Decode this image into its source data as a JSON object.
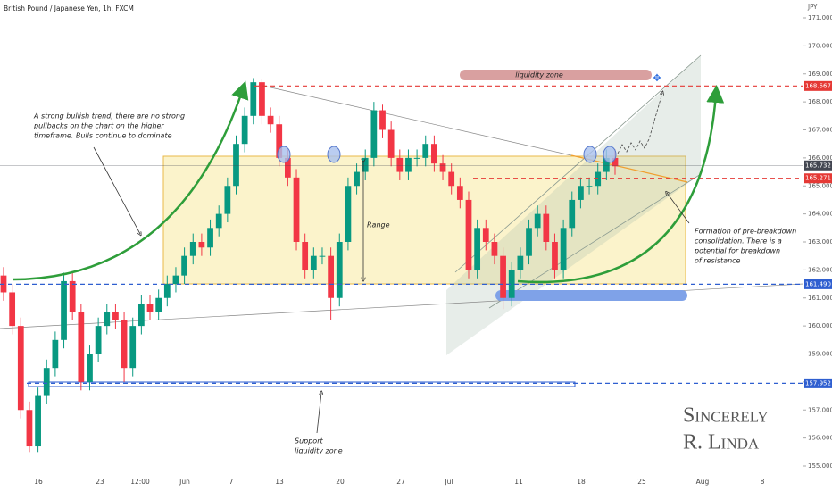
{
  "header": {
    "title": "British Pound / Japanese Yen, 1h, FXCM",
    "currency": "JPY"
  },
  "chart_data": {
    "type": "candlestick",
    "ylim": [
      155,
      171
    ],
    "yticks": [
      {
        "value": 171,
        "label": "171.000"
      },
      {
        "value": 170,
        "label": "170.000"
      },
      {
        "value": 169,
        "label": "169.000"
      },
      {
        "value": 168,
        "label": "168.000"
      },
      {
        "value": 167,
        "label": "167.000"
      },
      {
        "value": 166,
        "label": "166.000"
      },
      {
        "value": 165,
        "label": "165.000"
      },
      {
        "value": 164,
        "label": "164.000"
      },
      {
        "value": 163,
        "label": "163.000"
      },
      {
        "value": 162,
        "label": "162.000"
      },
      {
        "value": 161,
        "label": "161.000"
      },
      {
        "value": 160,
        "label": "160.000"
      },
      {
        "value": 159,
        "label": "159.000"
      },
      {
        "value": 158,
        "label": "158.000"
      },
      {
        "value": 157,
        "label": "157.000"
      },
      {
        "value": 156,
        "label": "156.000"
      },
      {
        "value": 155,
        "label": "155.000"
      }
    ],
    "x_labels": [
      "16",
      "23",
      "12:00",
      "Jun",
      "7",
      "13",
      "20",
      "27",
      "Jul",
      "11",
      "18",
      "25",
      "Aug",
      "8"
    ],
    "up_color": "#089981",
    "down_color": "#f23645",
    "open": [
      161.8,
      161.2,
      160.0,
      157.0,
      155.7,
      157.5,
      158.5,
      159.5,
      161.6,
      160.5,
      158.0,
      159.0,
      160.0,
      160.5,
      160.2,
      158.5,
      160.0,
      160.8,
      160.5,
      161.0,
      161.5,
      161.8,
      162.5,
      163.0,
      162.8,
      163.5,
      164.0,
      165.0,
      166.5,
      167.5,
      168.7,
      167.5,
      167.2,
      166.0,
      165.3,
      163.0,
      162.0,
      162.5,
      162.5,
      161.0,
      163.0,
      165.0,
      165.5,
      166.0,
      167.7,
      167.0,
      166.0,
      165.5,
      166.0,
      166.0,
      166.5,
      165.8,
      165.5,
      165.0,
      164.5,
      162.0,
      163.5,
      163.0,
      162.5,
      161.0,
      162.0,
      162.5,
      163.5,
      164.0,
      163.0,
      162.0,
      163.5,
      164.5,
      165.0,
      165.0,
      165.5,
      166.0
    ],
    "high": [
      162.1,
      161.5,
      160.3,
      157.3,
      157.8,
      158.8,
      159.8,
      161.9,
      161.9,
      160.8,
      159.3,
      160.3,
      160.8,
      160.8,
      160.5,
      160.3,
      161.1,
      161.1,
      161.3,
      161.8,
      162.1,
      162.8,
      163.3,
      163.3,
      163.8,
      164.3,
      165.3,
      166.8,
      167.8,
      168.85,
      168.8,
      167.8,
      167.5,
      166.3,
      165.6,
      163.3,
      162.8,
      162.8,
      162.8,
      163.3,
      165.3,
      165.8,
      166.3,
      168.0,
      167.9,
      167.3,
      166.3,
      166.3,
      166.3,
      166.8,
      166.8,
      166.1,
      165.8,
      165.3,
      164.8,
      163.8,
      163.8,
      163.3,
      162.8,
      162.3,
      162.8,
      163.8,
      164.3,
      164.3,
      163.3,
      163.8,
      164.8,
      165.3,
      165.3,
      165.8,
      166.3,
      166.3
    ],
    "low": [
      160.9,
      159.7,
      156.7,
      155.5,
      155.5,
      157.2,
      158.2,
      159.2,
      160.2,
      157.7,
      157.7,
      158.7,
      159.7,
      159.9,
      158.0,
      158.2,
      159.7,
      160.2,
      160.2,
      160.7,
      161.2,
      161.5,
      162.2,
      162.5,
      162.5,
      163.2,
      163.7,
      164.7,
      166.2,
      167.2,
      167.2,
      166.9,
      165.7,
      165.0,
      162.7,
      161.7,
      161.7,
      162.2,
      160.2,
      160.7,
      162.7,
      164.7,
      165.2,
      165.7,
      166.7,
      165.7,
      165.2,
      165.2,
      165.7,
      165.7,
      165.5,
      165.2,
      164.7,
      164.2,
      161.7,
      161.7,
      162.7,
      162.2,
      160.6,
      160.7,
      161.7,
      162.2,
      163.2,
      162.7,
      161.7,
      161.7,
      163.2,
      164.2,
      164.7,
      164.7,
      165.2,
      165.4
    ],
    "close": [
      161.2,
      160.0,
      157.0,
      155.7,
      157.5,
      158.5,
      159.5,
      161.6,
      160.5,
      158.0,
      159.0,
      160.0,
      160.5,
      160.2,
      158.5,
      160.0,
      160.8,
      160.5,
      161.0,
      161.5,
      161.8,
      162.5,
      163.0,
      162.8,
      163.5,
      164.0,
      165.0,
      166.5,
      167.5,
      168.7,
      167.5,
      167.2,
      166.0,
      165.3,
      163.0,
      162.0,
      162.5,
      162.5,
      161.0,
      163.0,
      165.0,
      165.5,
      166.0,
      167.7,
      167.0,
      166.0,
      165.5,
      166.0,
      166.0,
      166.5,
      165.8,
      165.5,
      165.0,
      164.5,
      162.0,
      163.5,
      163.0,
      162.5,
      161.0,
      162.0,
      162.5,
      163.5,
      164.0,
      163.0,
      162.0,
      163.5,
      164.5,
      165.0,
      165.0,
      165.5,
      166.0,
      165.7
    ],
    "levels": [
      {
        "value": 168.567,
        "label": "168.567",
        "color": "#e53935"
      },
      {
        "value": 165.732,
        "label": "165.732",
        "color": "#434651"
      },
      {
        "value": 165.271,
        "label": "165.271",
        "color": "#e53935"
      },
      {
        "value": 161.49,
        "label": "161.490",
        "color": "#2f5fd0"
      },
      {
        "value": 157.952,
        "label": "157.952",
        "color": "#2f5fd0"
      }
    ]
  },
  "annotations": {
    "trend": [
      "A strong bullish trend, there are no strong",
      "pullbacks on the chart on the higher",
      "timeframe. Bulls continue to dominate"
    ],
    "range": "Range",
    "liquidity": "liquidity zone",
    "formation": [
      "Formation of pre-breakdown",
      "consolidation. There is a",
      "potential for breakdown",
      "of resistance"
    ],
    "support": [
      "Support",
      "liquidity zone"
    ],
    "signature": [
      "Sincerely",
      "R. Linda"
    ]
  }
}
